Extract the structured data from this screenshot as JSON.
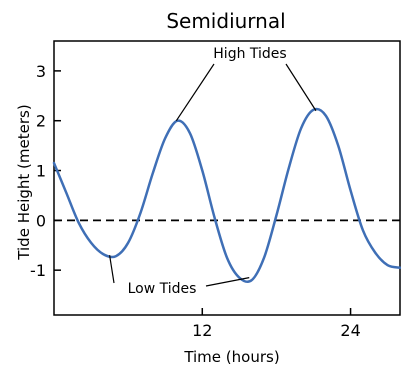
{
  "chart_data": {
    "type": "line",
    "title": "Semidiurnal",
    "xlabel": "Time (hours)",
    "ylabel": "Tide Height (meters)",
    "xlim": [
      0,
      28
    ],
    "ylim": [
      -1.9,
      3.6
    ],
    "x_ticks": [
      12,
      24
    ],
    "y_ticks": [
      3,
      2,
      1,
      0,
      -1
    ],
    "zero_line": "dashed",
    "grid": false,
    "legend": "none",
    "series": [
      {
        "color": "#3f6fb6",
        "x": [
          0,
          1,
          2,
          3,
          4,
          5,
          6,
          7,
          8,
          9,
          10,
          11,
          12,
          13,
          14,
          15,
          16,
          17,
          18,
          19,
          20,
          21,
          22,
          23,
          24,
          25,
          26,
          27,
          28
        ],
        "y": [
          1.15,
          0.55,
          -0.05,
          -0.45,
          -0.68,
          -0.72,
          -0.45,
          0.15,
          0.95,
          1.65,
          2.0,
          1.75,
          1.0,
          0.05,
          -0.75,
          -1.15,
          -1.2,
          -0.75,
          0.1,
          1.05,
          1.85,
          2.22,
          2.1,
          1.5,
          0.6,
          -0.2,
          -0.65,
          -0.9,
          -0.95
        ]
      }
    ],
    "annotations": [
      {
        "text": "High Tides",
        "targets": [
          [
            9.9,
            2.0
          ],
          [
            21.2,
            2.2
          ]
        ]
      },
      {
        "text": "Low Tides",
        "targets": [
          [
            4.5,
            -0.7
          ],
          [
            15.8,
            -1.15
          ]
        ]
      }
    ]
  }
}
